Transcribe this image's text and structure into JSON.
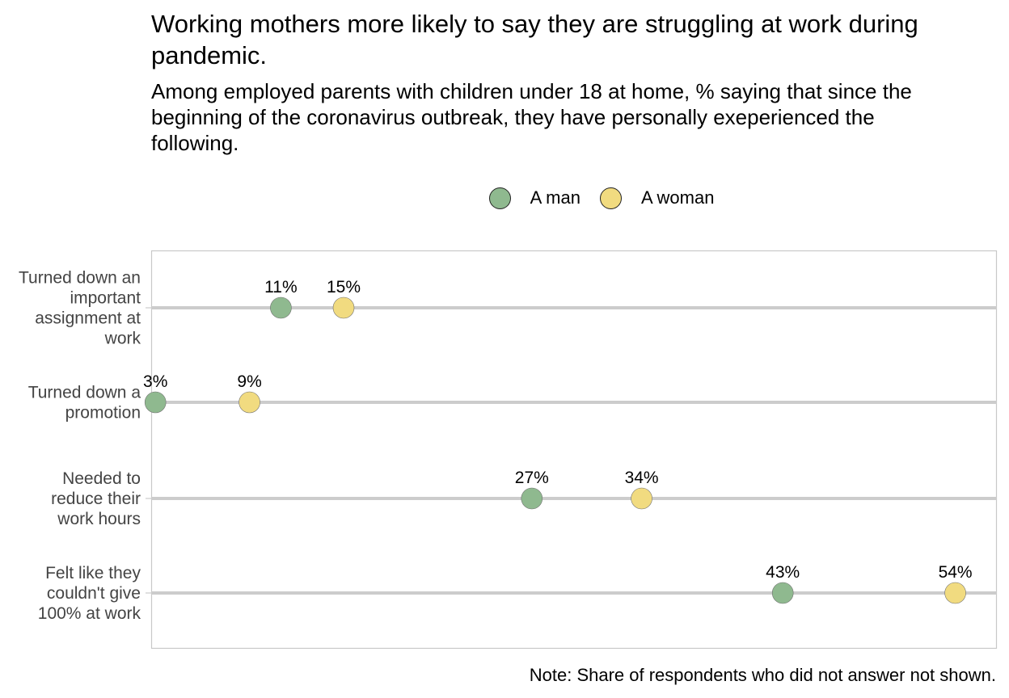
{
  "header": {
    "title": "Working mothers more likely to say they are struggling at work during pandemic.",
    "subtitle": "Among employed parents with children under 18 at home, % saying that since the beginning of the coronavirus outbreak, they have personally exeperienced the following."
  },
  "note": "Note: Share of respondents who did not answer not shown.",
  "chart_data": {
    "type": "scatter",
    "categories": [
      [
        "Turned down an",
        "important",
        "assignment at",
        "work"
      ],
      [
        "Turned down a",
        "promotion"
      ],
      [
        "Needed to",
        "reduce their",
        "work hours"
      ],
      [
        "Felt like they",
        "couldn't give",
        "100% at work"
      ]
    ],
    "series": [
      {
        "name": "A man",
        "color": "#8fb98f",
        "values": [
          11,
          3,
          27,
          43
        ],
        "labels": [
          "11%",
          "3%",
          "27%",
          "43%"
        ]
      },
      {
        "name": "A woman",
        "color": "#f1db80",
        "values": [
          15,
          9,
          34,
          54
        ],
        "labels": [
          "15%",
          "9%",
          "34%",
          "54%"
        ]
      }
    ],
    "xlim": [
      0,
      54
    ],
    "legend": "top-center",
    "grid": false
  }
}
